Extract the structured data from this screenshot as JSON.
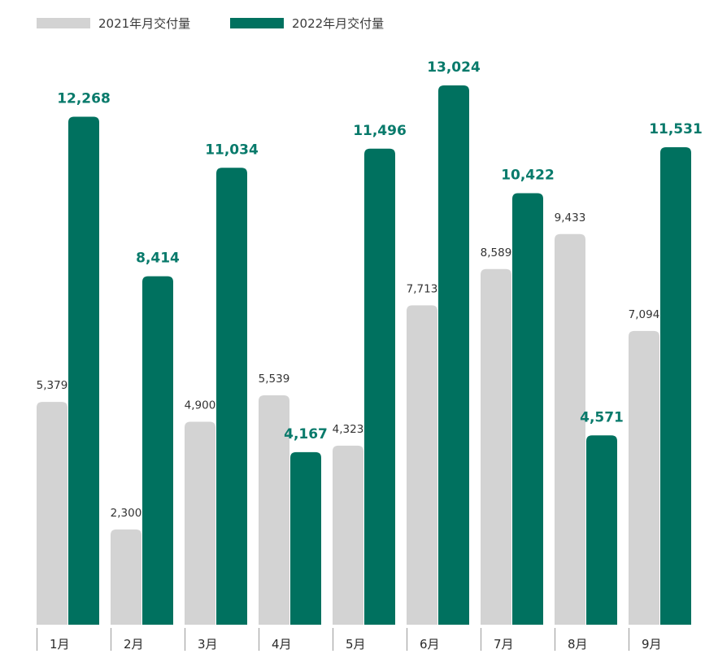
{
  "chart_data": {
    "type": "bar",
    "title": "",
    "xlabel": "",
    "ylabel": "",
    "categories": [
      "1月",
      "2月",
      "3月",
      "4月",
      "5月",
      "6月",
      "7月",
      "8月",
      "9月"
    ],
    "series": [
      {
        "name": "2021年月交付量",
        "color": "#d3d3d3",
        "values": [
          5379,
          2300,
          4900,
          5539,
          4323,
          7713,
          8589,
          9433,
          7094
        ],
        "labels": [
          "5,379",
          "2,300",
          "4,900",
          "5,539",
          "4,323",
          "7,713",
          "8,589",
          "9,433",
          "7,094"
        ]
      },
      {
        "name": "2022年月交付量",
        "color": "#00715f",
        "values": [
          12268,
          8414,
          11034,
          4167,
          11496,
          13024,
          10422,
          4571,
          11531
        ],
        "labels": [
          "12,268",
          "8,414",
          "11,034",
          "4,167",
          "11,496",
          "13,024",
          "10,422",
          "4,571",
          "11,531"
        ]
      }
    ],
    "ylim": [
      0,
      13024
    ],
    "grid": false,
    "legend": "top-left",
    "label_color_2022": "#087a6b"
  }
}
